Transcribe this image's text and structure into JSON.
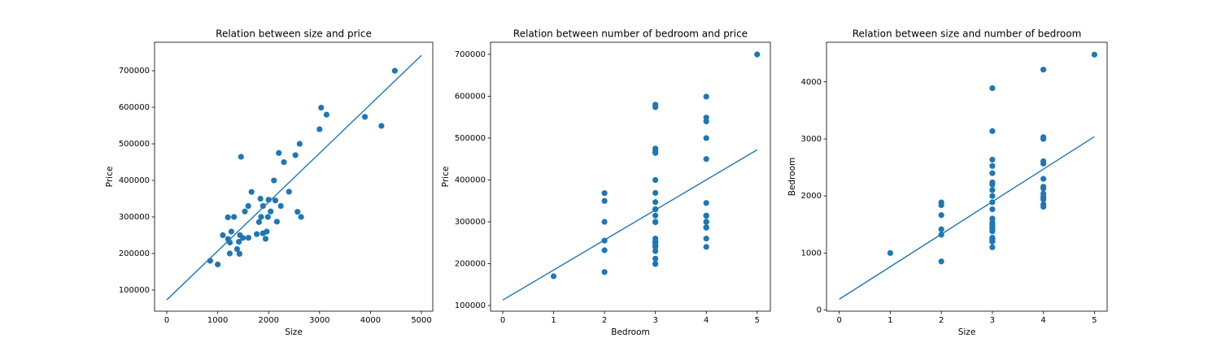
{
  "chart_data": [
    {
      "type": "scatter",
      "title": "Relation between size and price",
      "x_label": "Size",
      "y_label": "Price",
      "color": "#1f77b4",
      "x": [
        2104,
        1600,
        2400,
        1416,
        3000,
        1985,
        1534,
        1427,
        1380,
        1494,
        1940,
        2000,
        1890,
        4478,
        1268,
        2300,
        1320,
        1236,
        2609,
        3031,
        1767,
        1888,
        1604,
        1962,
        3890,
        1100,
        1458,
        2526,
        2200,
        2637,
        1839,
        1000,
        2040,
        3137,
        1811,
        1437,
        1239,
        2132,
        4215,
        2162,
        1664,
        2238,
        2567,
        1200,
        852,
        1852,
        1203
      ],
      "values": [
        399900,
        329900,
        369000,
        232000,
        539900,
        299900,
        314900,
        198999,
        212000,
        242500,
        239999,
        347000,
        329999,
        699900,
        259900,
        449900,
        299900,
        199900,
        499998,
        599000,
        252900,
        255000,
        242900,
        259900,
        573900,
        249900,
        464500,
        469000,
        475000,
        299900,
        349900,
        169900,
        314900,
        579900,
        285900,
        249900,
        229900,
        345000,
        549000,
        287000,
        368500,
        329900,
        314000,
        299000,
        179900,
        299900,
        239500
      ],
      "fit_x": [
        0,
        5000
      ],
      "fit_y": [
        73000,
        742000
      ],
      "xlim": [
        -240,
        5223
      ],
      "ylim": [
        42000,
        778000
      ],
      "xticks": [
        0,
        1000,
        2000,
        3000,
        4000,
        5000
      ],
      "yticks": [
        100000,
        200000,
        300000,
        400000,
        500000,
        600000,
        700000
      ]
    },
    {
      "type": "scatter",
      "title": "Relation between number of bedroom and price",
      "x_label": "Bedroom",
      "y_label": "Price",
      "color": "#1f77b4",
      "x": [
        3,
        3,
        3,
        2,
        4,
        4,
        3,
        3,
        3,
        3,
        4,
        3,
        3,
        5,
        3,
        4,
        2,
        3,
        4,
        4,
        3,
        2,
        3,
        4,
        3,
        3,
        3,
        3,
        3,
        3,
        2,
        1,
        4,
        3,
        4,
        3,
        3,
        4,
        4,
        4,
        2,
        3,
        4,
        3,
        2,
        4,
        3
      ],
      "values": [
        399900,
        329900,
        369000,
        232000,
        539900,
        299900,
        314900,
        198999,
        212000,
        242500,
        239999,
        347000,
        329999,
        699900,
        259900,
        449900,
        299900,
        199900,
        499998,
        599000,
        252900,
        255000,
        242900,
        259900,
        573900,
        249900,
        464500,
        469000,
        475000,
        299900,
        349900,
        169900,
        314900,
        579900,
        285900,
        249900,
        229900,
        345000,
        549000,
        287000,
        368500,
        329900,
        314000,
        299000,
        179900,
        299900,
        239500
      ],
      "fit_x": [
        0,
        5
      ],
      "fit_y": [
        113000,
        472000
      ],
      "xlim": [
        -0.24,
        5.26
      ],
      "ylim": [
        86400,
        729000
      ],
      "xticks": [
        0,
        1,
        2,
        3,
        4,
        5
      ],
      "yticks": [
        100000,
        200000,
        300000,
        400000,
        500000,
        600000,
        700000
      ]
    },
    {
      "type": "scatter",
      "title": "Relation between size and number of bedroom",
      "x_label": "Size",
      "y_label": "Bedroom",
      "color": "#1f77b4",
      "x": [
        3,
        3,
        3,
        2,
        4,
        4,
        3,
        3,
        3,
        3,
        4,
        3,
        3,
        5,
        3,
        4,
        2,
        3,
        4,
        4,
        3,
        2,
        3,
        4,
        3,
        3,
        3,
        3,
        3,
        3,
        2,
        1,
        4,
        3,
        4,
        3,
        3,
        4,
        4,
        4,
        2,
        3,
        4,
        3,
        2,
        4,
        3
      ],
      "values": [
        2104,
        1600,
        2400,
        1416,
        3000,
        1985,
        1534,
        1427,
        1380,
        1494,
        1940,
        2000,
        1890,
        4478,
        1268,
        2300,
        1320,
        1236,
        2609,
        3031,
        1767,
        1888,
        1604,
        1962,
        3890,
        1100,
        1458,
        2526,
        2200,
        2637,
        1839,
        1000,
        2040,
        3137,
        1811,
        1437,
        1239,
        2132,
        4215,
        2162,
        1664,
        2238,
        2567,
        1200,
        852,
        1852,
        1203
      ],
      "fit_x": [
        0,
        5
      ],
      "fit_y": [
        190,
        3040
      ],
      "xlim": [
        -0.25,
        5.25
      ],
      "ylim": [
        -20,
        4695
      ],
      "xticks": [
        0,
        1,
        2,
        3,
        4,
        5
      ],
      "yticks": [
        0,
        1000,
        2000,
        3000,
        4000
      ]
    }
  ]
}
